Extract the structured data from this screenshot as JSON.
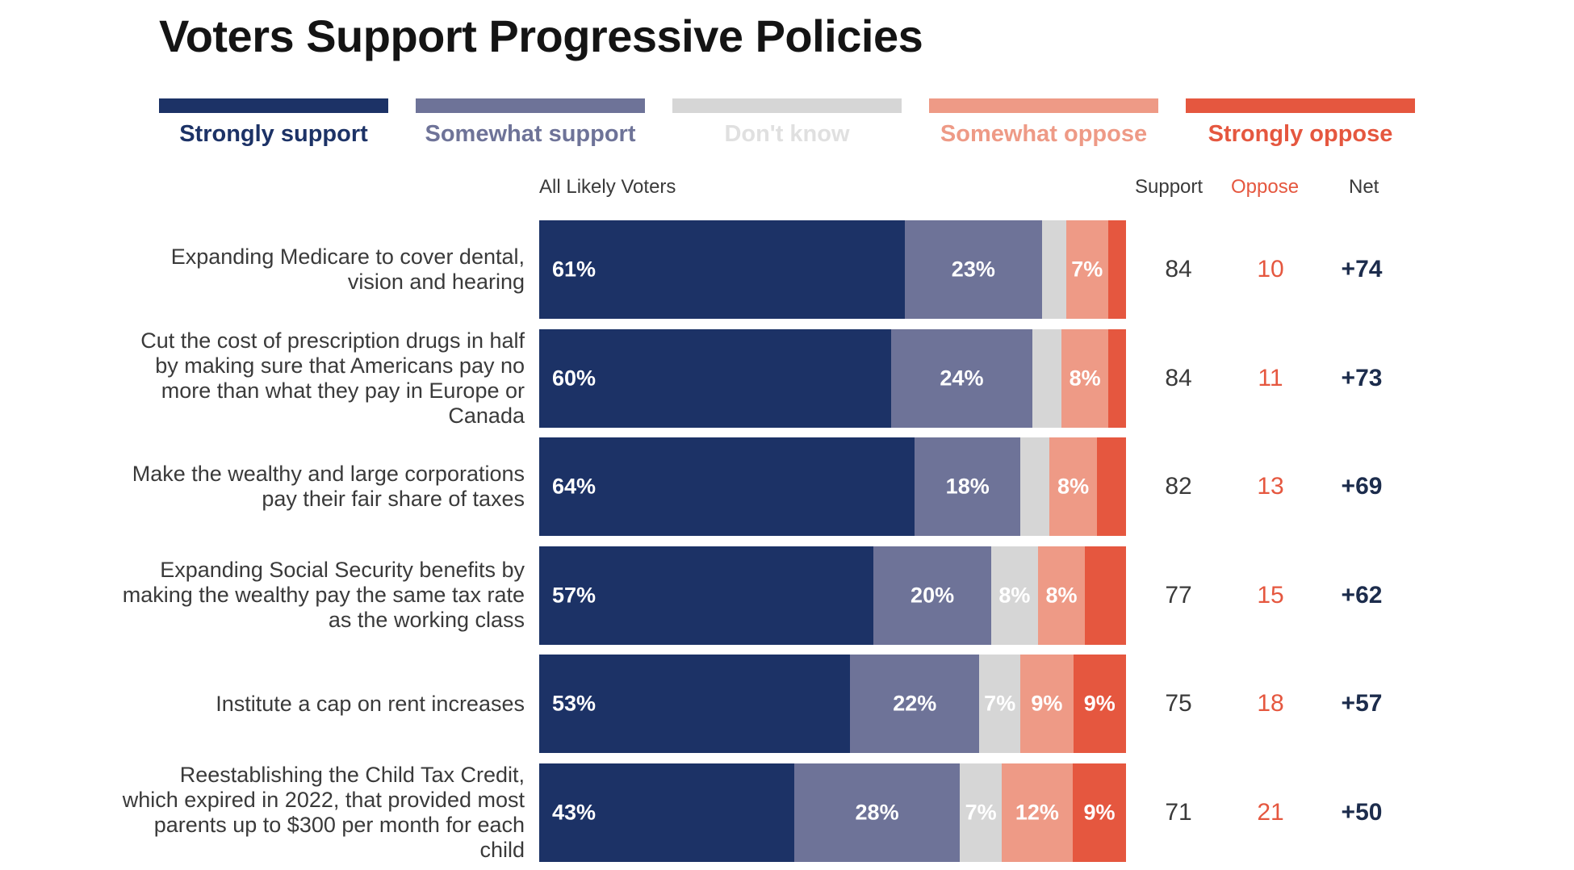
{
  "chart_data": {
    "type": "bar",
    "title": "Voters Support Progressive Policies",
    "column_header": "All Likely Voters",
    "stat_headers": {
      "support": "Support",
      "oppose": "Oppose",
      "net": "Net"
    },
    "legend": [
      {
        "name": "Strongly support",
        "color": "#1c3266",
        "text_color": "#1c3266"
      },
      {
        "name": "Somewhat support",
        "color": "#6e7398",
        "text_color": "#6e7398"
      },
      {
        "name": "Don't know",
        "color": "#d6d6d6",
        "text_color": "#e0e0e0"
      },
      {
        "name": "Somewhat oppose",
        "color": "#ee9a86",
        "text_color": "#ee9a86"
      },
      {
        "name": "Strongly oppose",
        "color": "#e5573f",
        "text_color": "#e5573f"
      }
    ],
    "rows": [
      {
        "label": "Expanding Medicare to cover dental, vision and hearing",
        "values": [
          61,
          23,
          4,
          7,
          3
        ],
        "labels": [
          "61%",
          "23%",
          "",
          "7%",
          ""
        ],
        "support": "84",
        "oppose": "10",
        "net": "+74"
      },
      {
        "label": "Cut the cost of prescription drugs in half by making sure that Americans pay no more than what they pay in Europe or Canada",
        "values": [
          60,
          24,
          5,
          8,
          3
        ],
        "labels": [
          "60%",
          "24%",
          "",
          "8%",
          ""
        ],
        "support": "84",
        "oppose": "11",
        "net": "+73"
      },
      {
        "label": "Make the wealthy and large corporations pay their fair share of taxes",
        "values": [
          64,
          18,
          5,
          8,
          5
        ],
        "labels": [
          "64%",
          "18%",
          "",
          "8%",
          ""
        ],
        "support": "82",
        "oppose": "13",
        "net": "+69"
      },
      {
        "label": "Expanding Social Security benefits by making the wealthy pay the same tax rate as the working class",
        "values": [
          57,
          20,
          8,
          8,
          7
        ],
        "labels": [
          "57%",
          "20%",
          "8%",
          "8%",
          ""
        ],
        "support": "77",
        "oppose": "15",
        "net": "+62"
      },
      {
        "label": "Institute a cap on rent increases",
        "values": [
          53,
          22,
          7,
          9,
          9
        ],
        "labels": [
          "53%",
          "22%",
          "7%",
          "9%",
          "9%"
        ],
        "support": "75",
        "oppose": "18",
        "net": "+57"
      },
      {
        "label": "Reestablishing the Child Tax Credit, which expired in 2022, that provided most parents up to $300 per month for each child",
        "values": [
          43,
          28,
          7,
          12,
          9
        ],
        "labels": [
          "43%",
          "28%",
          "7%",
          "12%",
          "9%"
        ],
        "support": "71",
        "oppose": "21",
        "net": "+50"
      }
    ]
  }
}
